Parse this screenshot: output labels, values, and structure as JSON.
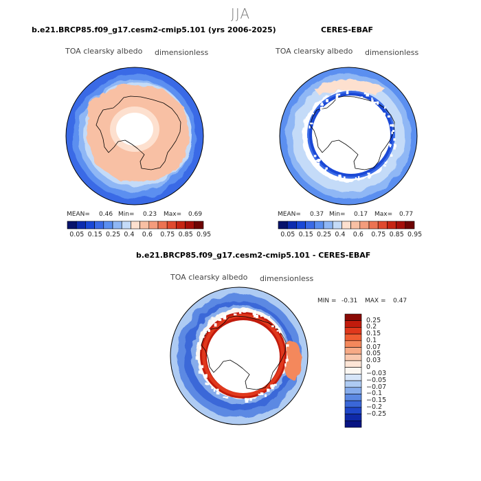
{
  "season": "JJA",
  "panels": [
    {
      "title": "b.e21.BRCP85.f09_g17.cesm2-cmip5.101 (yrs 2006-2025)",
      "variable": "TOA clearsky albedo",
      "units": "dimensionless",
      "stats": {
        "mean_label": "MEAN=",
        "mean": "0.46",
        "min_label": "Min=",
        "min": "0.23",
        "max_label": "Max=",
        "max": "0.69"
      }
    },
    {
      "title": "CERES-EBAF",
      "variable": "TOA clearsky albedo",
      "units": "dimensionless",
      "stats": {
        "mean_label": "MEAN=",
        "mean": "0.37",
        "min_label": "Min=",
        "min": "0.17",
        "max_label": "Max=",
        "max": "0.77"
      }
    },
    {
      "title": "b.e21.BRCP85.f09_g17.cesm2-cmip5.101 - CERES-EBAF",
      "variable": "TOA clearsky albedo",
      "units": "dimensionless",
      "stats": {
        "min_label": "MIN =",
        "min": "-0.31",
        "max_label": "MAX =",
        "max": "0.47"
      }
    }
  ],
  "colors": {
    "abs_scale": [
      "#08136b",
      "#0d2cae",
      "#1a48d6",
      "#3a6ae6",
      "#5b8ff0",
      "#8fb7f5",
      "#c4dbf8",
      "#fde0cf",
      "#f8c0a4",
      "#f49c7c",
      "#ec7352",
      "#e04a2e",
      "#c62513",
      "#a50f0a",
      "#6e0404"
    ],
    "diff_scale": [
      "#8a0a05",
      "#c21b0c",
      "#e0381c",
      "#ef5d32",
      "#f4885c",
      "#f7aa86",
      "#f9c8ae",
      "#fde5d6",
      "#fbf7f2",
      "#d6e5f8",
      "#aecbf3",
      "#86acec",
      "#5c89e3",
      "#3a67d8",
      "#1f46c8",
      "#0f29a8",
      "#071482"
    ]
  },
  "chart_data": [
    {
      "type": "heatmap",
      "projection": "south polar stereographic",
      "title": "b.e21.BRCP85.f09_g17.cesm2-cmip5.101 (yrs 2006-2025)",
      "variable": "TOA clearsky albedo",
      "units": "dimensionless",
      "colorbar_levels": [
        0.05,
        0.1,
        0.15,
        0.2,
        0.25,
        0.3,
        0.4,
        0.5,
        0.6,
        0.65,
        0.75,
        0.8,
        0.85,
        0.9,
        0.95
      ],
      "colorbar_tick_labels": [
        "0.05",
        "0.15",
        "0.25",
        "0.4",
        "0.6",
        "0.75",
        "0.85",
        "0.95"
      ],
      "mean": 0.46,
      "min": 0.23,
      "max": 0.69
    },
    {
      "type": "heatmap",
      "projection": "south polar stereographic",
      "title": "CERES-EBAF",
      "variable": "TOA clearsky albedo",
      "units": "dimensionless",
      "colorbar_levels": [
        0.05,
        0.1,
        0.15,
        0.2,
        0.25,
        0.3,
        0.4,
        0.5,
        0.6,
        0.65,
        0.75,
        0.8,
        0.85,
        0.9,
        0.95
      ],
      "colorbar_tick_labels": [
        "0.05",
        "0.15",
        "0.25",
        "0.4",
        "0.6",
        "0.75",
        "0.85",
        "0.95"
      ],
      "mean": 0.37,
      "min": 0.17,
      "max": 0.77
    },
    {
      "type": "heatmap",
      "projection": "south polar stereographic",
      "title": "b.e21.BRCP85.f09_g17.cesm2-cmip5.101 - CERES-EBAF",
      "variable": "TOA clearsky albedo",
      "units": "dimensionless",
      "colorbar_levels": [
        0.25,
        0.2,
        0.15,
        0.1,
        0.07,
        0.05,
        0.03,
        0,
        -0.03,
        -0.05,
        -0.07,
        -0.1,
        -0.15,
        -0.2,
        -0.25
      ],
      "colorbar_tick_labels": [
        "0.25",
        "0.2",
        "0.15",
        "0.1",
        "0.07",
        "0.05",
        "0.03",
        "0",
        "−0.03",
        "−0.05",
        "−0.07",
        "−0.1",
        "−0.15",
        "−0.2",
        "−0.25"
      ],
      "min": -0.31,
      "max": 0.47
    }
  ]
}
